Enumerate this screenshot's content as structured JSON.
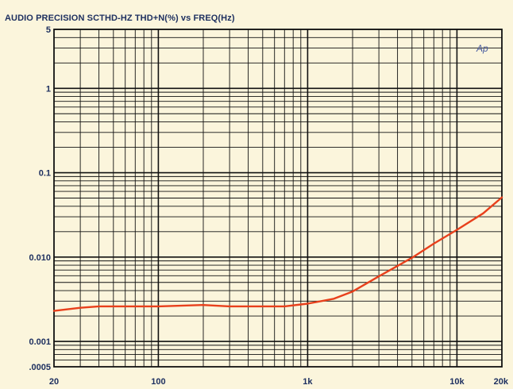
{
  "chart_data": {
    "type": "line",
    "title": "AUDIO PRECISION SCTHD-HZ  THD+N(%)  vs  FREQ(Hz)",
    "logo": "Ap",
    "x_scale": "log",
    "y_scale": "log",
    "xlim": [
      20,
      20000
    ],
    "ylim": [
      0.0005,
      5
    ],
    "x_ticks": [
      {
        "value": 20,
        "label": "20"
      },
      {
        "value": 100,
        "label": "100"
      },
      {
        "value": 1000,
        "label": "1k"
      },
      {
        "value": 10000,
        "label": "10k"
      },
      {
        "value": 20000,
        "label": "20k"
      }
    ],
    "y_ticks": [
      {
        "value": 5,
        "label": "5"
      },
      {
        "value": 1,
        "label": "1"
      },
      {
        "value": 0.1,
        "label": "0.1"
      },
      {
        "value": 0.01,
        "label": "0.010"
      },
      {
        "value": 0.001,
        "label": "0.001"
      },
      {
        "value": 0.0005,
        "label": ".0005"
      }
    ],
    "grid": true,
    "series": [
      {
        "color": "#e8401c",
        "x": [
          20,
          30,
          40,
          60,
          100,
          200,
          300,
          500,
          700,
          1000,
          1500,
          2000,
          3000,
          5000,
          7000,
          10000,
          15000,
          20000
        ],
        "y": [
          0.0023,
          0.0025,
          0.0026,
          0.0026,
          0.0026,
          0.0027,
          0.0026,
          0.0026,
          0.0026,
          0.0028,
          0.0032,
          0.0039,
          0.0059,
          0.0098,
          0.0144,
          0.021,
          0.033,
          0.051
        ]
      }
    ]
  },
  "colors": {
    "background": "#fbf5dc",
    "plot_background": "#fbf5dc",
    "grid": "#111111",
    "text": "#1e3060"
  }
}
